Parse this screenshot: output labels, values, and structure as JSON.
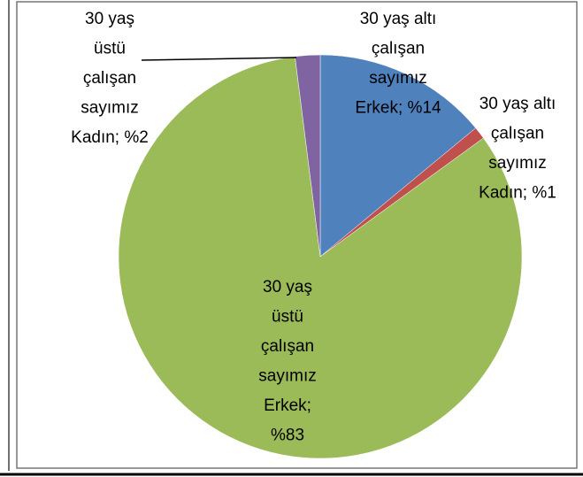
{
  "chart_data": {
    "type": "pie",
    "values": [
      14,
      1,
      83,
      2
    ],
    "value_labels": [
      "30 yaş altı çalışan sayımız Erkek; %14",
      "30 yaş altı çalışan sayımız Kadın; %1",
      "30 yaş üstü çalışan sayımız Erkek; %83",
      "30 yaş üstü çalışan sayımız Kadın; %2"
    ],
    "colors": [
      "#4f81bd",
      "#c0504d",
      "#9bbb59",
      "#8064a2"
    ]
  }
}
